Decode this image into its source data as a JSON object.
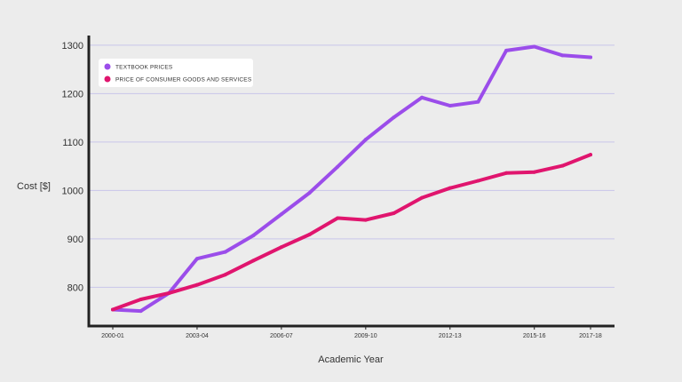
{
  "chart_data": {
    "type": "line",
    "title": "",
    "xlabel": "Academic Year",
    "ylabel": "Cost [$]",
    "ylim": [
      720,
      1320
    ],
    "yticks": [
      800,
      900,
      1000,
      1100,
      1200,
      1300
    ],
    "grid": true,
    "legend_position": "top-left",
    "x": [
      "2000-01",
      "2001-02",
      "2002-03",
      "2003-04",
      "2004-05",
      "2005-06",
      "2006-07",
      "2007-08",
      "2008-09",
      "2009-10",
      "2010-11",
      "2011-12",
      "2012-13",
      "2013-14",
      "2014-15",
      "2015-16",
      "2016-17",
      "2017-18"
    ],
    "xtick_labels": [
      {
        "index": 0,
        "label": "2000-01"
      },
      {
        "index": 3,
        "label": "2003-04"
      },
      {
        "index": 6,
        "label": "2006-07"
      },
      {
        "index": 9,
        "label": "2009-10"
      },
      {
        "index": 12,
        "label": "2012-13"
      },
      {
        "index": 15,
        "label": "2015-16"
      },
      {
        "index": 17,
        "label": "2017-18"
      }
    ],
    "series": [
      {
        "name": "TEXTBOOK PRICES",
        "color": "#9b4dea",
        "values": [
          754,
          751,
          788,
          859,
          873,
          907,
          951,
          995,
          1049,
          1105,
          1151,
          1192,
          1175,
          1183,
          1289,
          1297,
          1279,
          1275
        ]
      },
      {
        "name": "PRICE OF CONSUMER GOODS AND SERVICES",
        "color": "#e0156e",
        "values": [
          754,
          775,
          788,
          805,
          826,
          855,
          883,
          909,
          943,
          939,
          953,
          985,
          1005,
          1020,
          1036,
          1038,
          1051,
          1074
        ]
      }
    ]
  }
}
